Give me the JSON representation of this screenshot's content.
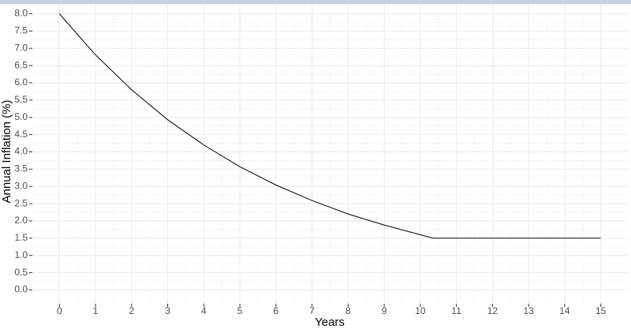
{
  "chart_data": {
    "type": "line",
    "x_label": "Years",
    "y_label": "Annual Inflation (%)",
    "x": [
      0,
      1,
      2,
      3,
      4,
      5,
      6,
      7,
      8,
      9,
      10,
      10.35,
      11,
      12,
      13,
      14,
      15
    ],
    "series": [
      {
        "color": "#000000",
        "values": [
          8.0,
          6.81,
          5.8,
          4.93,
          4.2,
          3.57,
          3.04,
          2.59,
          2.2,
          1.88,
          1.6,
          1.5,
          1.5,
          1.5,
          1.5,
          1.5,
          1.5
        ]
      }
    ],
    "xlim": [
      -0.75,
      15.75
    ],
    "ylim": [
      -0.4,
      8.4
    ],
    "xticks": [
      0,
      1,
      2,
      3,
      4,
      5,
      6,
      7,
      8,
      9,
      10,
      11,
      12,
      13,
      14,
      15
    ],
    "yticks": [
      {
        "value": 0,
        "label": "0.0"
      },
      0.5,
      {
        "value": 1,
        "label": "1.0"
      },
      1.5,
      {
        "value": 2,
        "label": "2.0"
      },
      2.5,
      {
        "value": 3,
        "label": "3.0"
      },
      3.5,
      {
        "value": 4,
        "label": "4.0"
      },
      4.5,
      {
        "value": 5,
        "label": "5.0"
      },
      5.5,
      {
        "value": 6,
        "label": "6.0"
      },
      6.5,
      {
        "value": 7,
        "label": "7.0"
      },
      7.5,
      {
        "value": 8,
        "label": "8.0"
      }
    ],
    "grid": true,
    "minor_grid": true
  }
}
